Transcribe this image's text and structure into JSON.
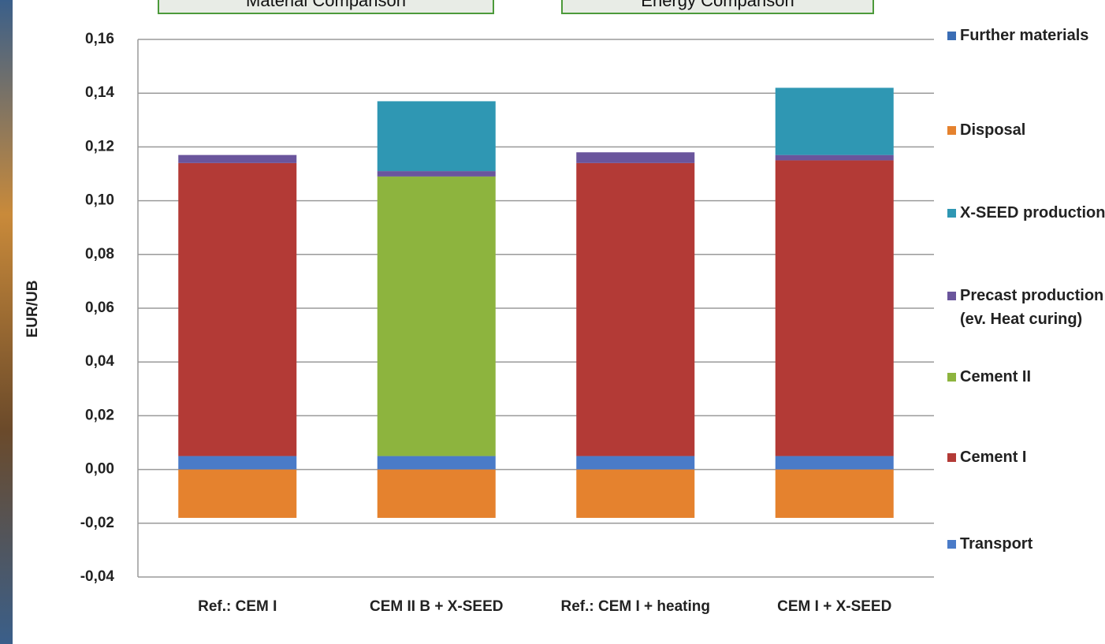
{
  "tabs": [
    "Material Comparison",
    "Energy Comparison"
  ],
  "chart_data": {
    "type": "stacked_bar",
    "y_label": "EUR/UB",
    "categories": [
      "Ref.: CEM I",
      "CEM II B + X-SEED",
      "Ref.: CEM I + heating",
      "CEM I + X-SEED"
    ],
    "series": [
      {
        "name": "Transport",
        "color": "#4a7bc8",
        "values": [
          0.005,
          0.005,
          0.005,
          0.005
        ]
      },
      {
        "name": "Cement I",
        "color": "#b33a36",
        "values": [
          0.109,
          0,
          0.109,
          0.11
        ]
      },
      {
        "name": "Cement II",
        "color": "#8db43e",
        "values": [
          0,
          0.104,
          0,
          0
        ]
      },
      {
        "name": "Precast production (ev. Heat curing)",
        "color": "#6a559c",
        "values": [
          0.003,
          0.002,
          0.004,
          0.002
        ]
      },
      {
        "name": "X-SEED production",
        "color": "#2f97b3",
        "values": [
          0,
          0.026,
          0,
          0.025
        ]
      },
      {
        "name": "Disposal",
        "color": "#e5822e",
        "values": [
          -0.018,
          -0.018,
          -0.018,
          -0.018
        ]
      },
      {
        "name": "Further materials",
        "color": "#3a6db5",
        "values": [
          0,
          0,
          0,
          0
        ]
      }
    ],
    "ylim": [
      -0.04,
      0.16
    ],
    "yticks": [
      {
        "value": -0.04,
        "label": "-0,04"
      },
      {
        "value": -0.02,
        "label": "-0,02"
      },
      {
        "value": 0,
        "label": "0,00"
      },
      {
        "value": 0.02,
        "label": "0,02"
      },
      {
        "value": 0.04,
        "label": "0,04"
      },
      {
        "value": 0.06,
        "label": "0,06"
      },
      {
        "value": 0.08,
        "label": "0,08"
      },
      {
        "value": 0.1,
        "label": "0,10"
      },
      {
        "value": 0.12,
        "label": "0,12"
      },
      {
        "value": 0.14,
        "label": "0,14"
      },
      {
        "value": 0.16,
        "label": "0,16"
      }
    ],
    "grid": true
  }
}
